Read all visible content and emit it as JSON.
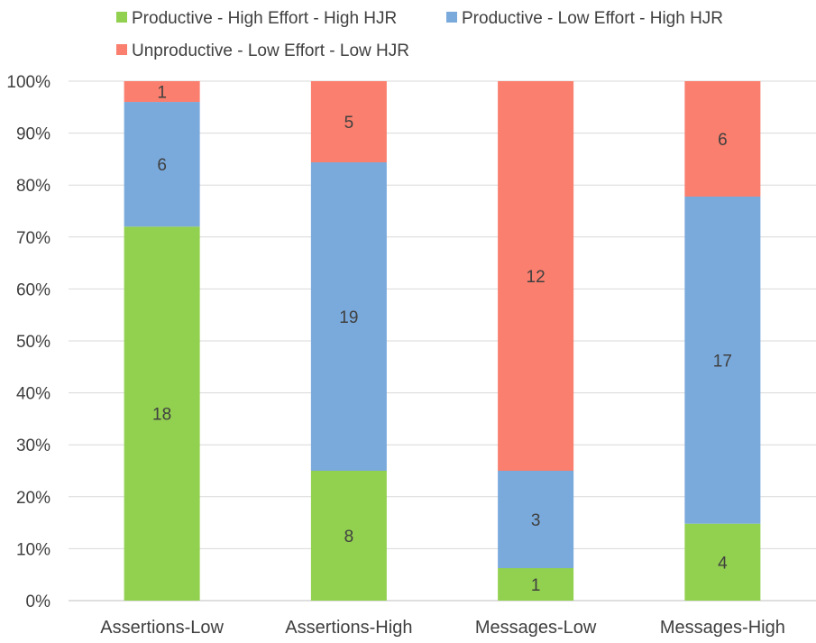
{
  "chart_data": {
    "type": "bar",
    "stacked": true,
    "normalized_percent": true,
    "categories": [
      "Assertions-Low",
      "Assertions-High",
      "Messages-Low",
      "Messages-High"
    ],
    "series": [
      {
        "name": "Productive - High Effort - High HJR",
        "color": "#92d050",
        "values": [
          18,
          8,
          1,
          4
        ]
      },
      {
        "name": "Productive - Low Effort - High HJR",
        "color": "#7aaadc",
        "values": [
          6,
          19,
          3,
          17
        ]
      },
      {
        "name": "Unproductive - Low Effort - Low HJR",
        "color": "#fa7f6e",
        "values": [
          1,
          5,
          12,
          6
        ]
      }
    ],
    "y_ticks": [
      "0%",
      "10%",
      "20%",
      "30%",
      "40%",
      "50%",
      "60%",
      "70%",
      "80%",
      "90%",
      "100%"
    ],
    "ylim": [
      0,
      100
    ],
    "grid": true,
    "legend_position": "top",
    "title": "",
    "xlabel": "",
    "ylabel": ""
  }
}
